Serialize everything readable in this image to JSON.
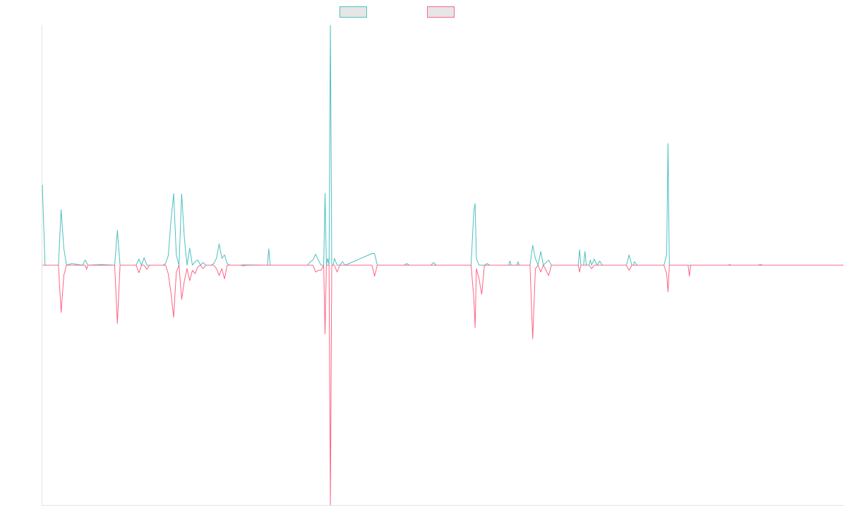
{
  "chart_data": {
    "type": "line",
    "title": "",
    "xlabel": "",
    "ylabel": "",
    "xlim": [
      0,
      299
    ],
    "ylim": [
      -0.7,
      0.7
    ],
    "grid": false,
    "legend": "top-center",
    "series": [
      {
        "color": "#4bc0c0",
        "points": [
          [
            0,
            0.235
          ],
          [
            1,
            0
          ],
          [
            6,
            0
          ],
          [
            7,
            0.162
          ],
          [
            8,
            0.05
          ],
          [
            9,
            0
          ],
          [
            11,
            0.005
          ],
          [
            15,
            0
          ],
          [
            16,
            0.015
          ],
          [
            17,
            0
          ],
          [
            22,
            0.002
          ],
          [
            27,
            0
          ],
          [
            28,
            0.102
          ],
          [
            29,
            0
          ],
          [
            35,
            0
          ],
          [
            36,
            0.018
          ],
          [
            37,
            0
          ],
          [
            38,
            0.022
          ],
          [
            39,
            0
          ],
          [
            45,
            0
          ],
          [
            46,
            0.005
          ],
          [
            47,
            0.028
          ],
          [
            48,
            0.129
          ],
          [
            49,
            0.209
          ],
          [
            50,
            0.03
          ],
          [
            51,
            0
          ],
          [
            52,
            0.208
          ],
          [
            53,
            0.08
          ],
          [
            54,
            0
          ],
          [
            55,
            0.05
          ],
          [
            56,
            0
          ],
          [
            57,
            0.01
          ],
          [
            58,
            0.015
          ],
          [
            59,
            0
          ],
          [
            60,
            0.008
          ],
          [
            61,
            0
          ],
          [
            63,
            0
          ],
          [
            64,
            0.005
          ],
          [
            65,
            0.02
          ],
          [
            66,
            0.062
          ],
          [
            67,
            0.02
          ],
          [
            68,
            0.03
          ],
          [
            69,
            0.005
          ],
          [
            70,
            0
          ],
          [
            74,
            0
          ],
          [
            75,
            0.001
          ],
          [
            84,
            0
          ],
          [
            84.5,
            0.048
          ],
          [
            85,
            0
          ],
          [
            99,
            0
          ],
          [
            100,
            0.01
          ],
          [
            101,
            0.015
          ],
          [
            102,
            0.032
          ],
          [
            103,
            0.015
          ],
          [
            104,
            0
          ],
          [
            105,
            0
          ],
          [
            105.5,
            0.21
          ],
          [
            106,
            0
          ],
          [
            106.5,
            0.02
          ],
          [
            107,
            0
          ],
          [
            107.5,
            0.7
          ],
          [
            108,
            0
          ],
          [
            108.5,
            0
          ],
          [
            109,
            0.02
          ],
          [
            110,
            0
          ],
          [
            111,
            0
          ],
          [
            112,
            0.01
          ],
          [
            113,
            0
          ],
          [
            123,
            0.034
          ],
          [
            124,
            0.034
          ],
          [
            125,
            0
          ],
          [
            135,
            0
          ],
          [
            136,
            0.005
          ],
          [
            137,
            0
          ],
          [
            145,
            0
          ],
          [
            146,
            0.008
          ],
          [
            147,
            0
          ],
          [
            149,
            0
          ],
          [
            160,
            0
          ],
          [
            161,
            0.155
          ],
          [
            161.5,
            0.18
          ],
          [
            162,
            0.02
          ],
          [
            163,
            0
          ],
          [
            165,
            0
          ],
          [
            166,
            0.005
          ],
          [
            167,
            0
          ],
          [
            174,
            0
          ],
          [
            174.5,
            0.012
          ],
          [
            175,
            0
          ],
          [
            177,
            0
          ],
          [
            177.5,
            0.01
          ],
          [
            178,
            0
          ],
          [
            182,
            0
          ],
          [
            183,
            0.058
          ],
          [
            184,
            0.02
          ],
          [
            185,
            0
          ],
          [
            186,
            0.04
          ],
          [
            187,
            0
          ],
          [
            189,
            0.015
          ],
          [
            190,
            0
          ],
          [
            200,
            0
          ],
          [
            200.5,
            0.045
          ],
          [
            201,
            0
          ],
          [
            202,
            0
          ],
          [
            202.5,
            0.04
          ],
          [
            203,
            0
          ],
          [
            204,
            0
          ],
          [
            204.5,
            0.015
          ],
          [
            205,
            0
          ],
          [
            206,
            0.018
          ],
          [
            207,
            0
          ],
          [
            208,
            0.012
          ],
          [
            209,
            0
          ],
          [
            218,
            0
          ],
          [
            219,
            0.03
          ],
          [
            220,
            0
          ],
          [
            220.5,
            0
          ],
          [
            221,
            0.01
          ],
          [
            222,
            0
          ],
          [
            232,
            0
          ],
          [
            233,
            0.03
          ],
          [
            233.5,
            0.355
          ],
          [
            234,
            0
          ],
          [
            253,
            0
          ],
          [
            256,
            0
          ],
          [
            256.5,
            0.002
          ],
          [
            257,
            0
          ],
          [
            267,
            0
          ],
          [
            268,
            0.002
          ],
          [
            269,
            0
          ],
          [
            299,
            0
          ]
        ]
      },
      {
        "color": "#ff6384",
        "points": [
          [
            0,
            0
          ],
          [
            6,
            0
          ],
          [
            7,
            -0.138
          ],
          [
            8,
            -0.03
          ],
          [
            9,
            0
          ],
          [
            16,
            0
          ],
          [
            16.5,
            -0.012
          ],
          [
            17,
            0
          ],
          [
            27,
            0
          ],
          [
            28,
            -0.17
          ],
          [
            29,
            0
          ],
          [
            35,
            0
          ],
          [
            36,
            -0.022
          ],
          [
            37,
            0
          ],
          [
            38,
            0
          ],
          [
            39,
            -0.012
          ],
          [
            40,
            0
          ],
          [
            46,
            0
          ],
          [
            47,
            -0.025
          ],
          [
            48,
            -0.08
          ],
          [
            49,
            -0.152
          ],
          [
            50,
            -0.02
          ],
          [
            51,
            0
          ],
          [
            52,
            -0.1
          ],
          [
            53,
            -0.045
          ],
          [
            54,
            -0.01
          ],
          [
            55,
            -0.045
          ],
          [
            56,
            -0.015
          ],
          [
            57,
            -0.025
          ],
          [
            58,
            -0.005
          ],
          [
            59,
            0
          ],
          [
            60,
            -0.01
          ],
          [
            61,
            0
          ],
          [
            64,
            0
          ],
          [
            65,
            -0.01
          ],
          [
            66,
            -0.03
          ],
          [
            67,
            -0.01
          ],
          [
            68,
            -0.04
          ],
          [
            69,
            0
          ],
          [
            70,
            0
          ],
          [
            74,
            0
          ],
          [
            75,
            -0.002
          ],
          [
            76,
            0
          ],
          [
            101,
            0
          ],
          [
            102,
            -0.02
          ],
          [
            103,
            -0.015
          ],
          [
            104,
            -0.015
          ],
          [
            105,
            0
          ],
          [
            105.5,
            -0.2
          ],
          [
            106,
            0
          ],
          [
            107,
            0
          ],
          [
            107.5,
            -0.7
          ],
          [
            108,
            0
          ],
          [
            109,
            0
          ],
          [
            110,
            -0.02
          ],
          [
            111,
            0
          ],
          [
            123,
            0
          ],
          [
            124,
            -0.032
          ],
          [
            125,
            0
          ],
          [
            160,
            0
          ],
          [
            161,
            -0.095
          ],
          [
            161.5,
            -0.182
          ],
          [
            162,
            -0.01
          ],
          [
            163,
            -0.04
          ],
          [
            164,
            -0.085
          ],
          [
            165,
            0
          ],
          [
            182,
            0
          ],
          [
            183,
            -0.215
          ],
          [
            184,
            -0.01
          ],
          [
            185,
            0
          ],
          [
            186,
            -0.02
          ],
          [
            187,
            0
          ],
          [
            189,
            -0.03
          ],
          [
            190,
            0
          ],
          [
            200,
            0
          ],
          [
            200.5,
            -0.02
          ],
          [
            201,
            0
          ],
          [
            204,
            0
          ],
          [
            205,
            -0.01
          ],
          [
            206,
            0
          ],
          [
            218,
            0
          ],
          [
            219,
            -0.015
          ],
          [
            220,
            0
          ],
          [
            232,
            0
          ],
          [
            233,
            -0.025
          ],
          [
            233.5,
            -0.078
          ],
          [
            234,
            0
          ],
          [
            241,
            0
          ],
          [
            241.5,
            -0.032
          ],
          [
            242,
            0
          ],
          [
            299,
            0
          ]
        ]
      }
    ]
  }
}
